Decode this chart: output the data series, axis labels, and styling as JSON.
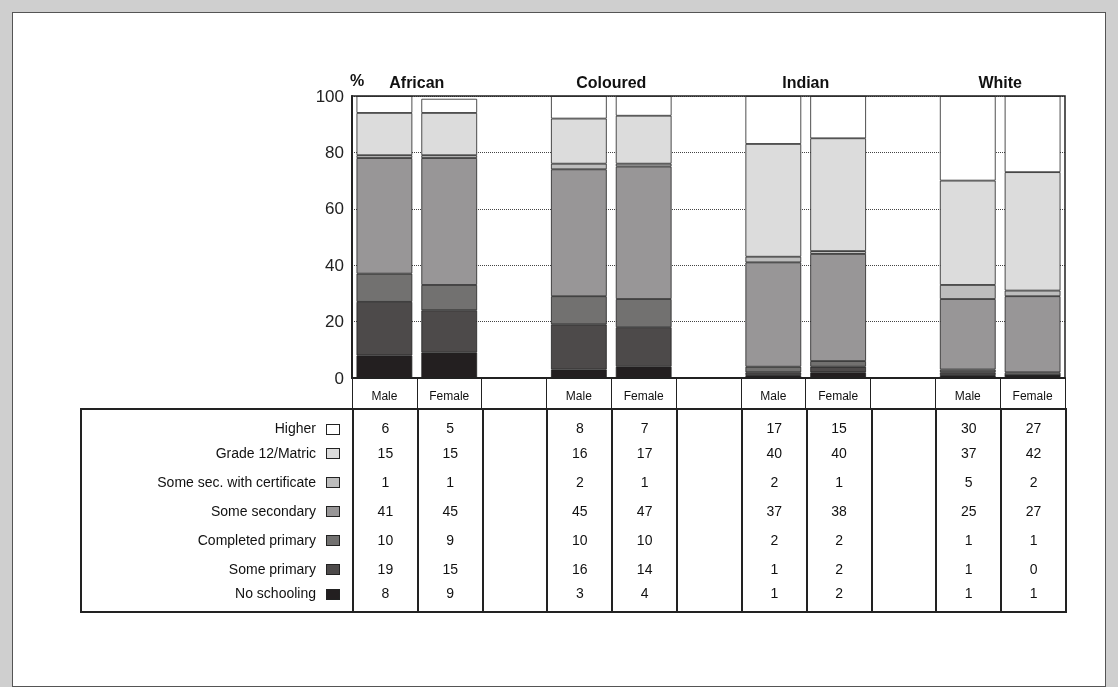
{
  "chart_data": {
    "type": "bar",
    "stacked": true,
    "ylabel": "%",
    "annotations": [
      "African",
      "Coloured",
      "Indian",
      "White"
    ],
    "categories": [
      "Male",
      "Female",
      null,
      "Male",
      "Female",
      null,
      "Male",
      "Female",
      null,
      "Male",
      "Female"
    ],
    "series": [
      {
        "name": "No schooling",
        "color": "#231f20",
        "values": [
          8,
          9,
          null,
          3,
          4,
          null,
          1,
          2,
          null,
          1,
          1
        ]
      },
      {
        "name": "Some primary",
        "color": "#4d4a4a",
        "values": [
          19,
          15,
          null,
          16,
          14,
          null,
          1,
          2,
          null,
          1,
          0
        ]
      },
      {
        "name": "Completed primary",
        "color": "#727170",
        "values": [
          10,
          9,
          null,
          10,
          10,
          null,
          2,
          2,
          null,
          1,
          1
        ]
      },
      {
        "name": "Some secondary",
        "color": "#989697",
        "values": [
          41,
          45,
          null,
          45,
          47,
          null,
          37,
          38,
          null,
          25,
          27
        ]
      },
      {
        "name": "Some sec. with certificate",
        "color": "#bdbdbd",
        "values": [
          1,
          1,
          null,
          2,
          1,
          null,
          2,
          1,
          null,
          5,
          2
        ]
      },
      {
        "name": "Grade 12/Matric",
        "color": "#dcdcdc",
        "values": [
          15,
          15,
          null,
          16,
          17,
          null,
          40,
          40,
          null,
          37,
          42
        ]
      },
      {
        "name": "Higher",
        "color": "#ffffff",
        "values": [
          6,
          5,
          null,
          8,
          7,
          null,
          17,
          15,
          null,
          30,
          27
        ]
      }
    ],
    "ylim": [
      0,
      100
    ],
    "yticks": [
      0,
      20,
      40,
      60,
      80,
      100
    ],
    "grid": "y",
    "line_style": "dotted",
    "legend": "bottom left",
    "data_labels": true
  }
}
